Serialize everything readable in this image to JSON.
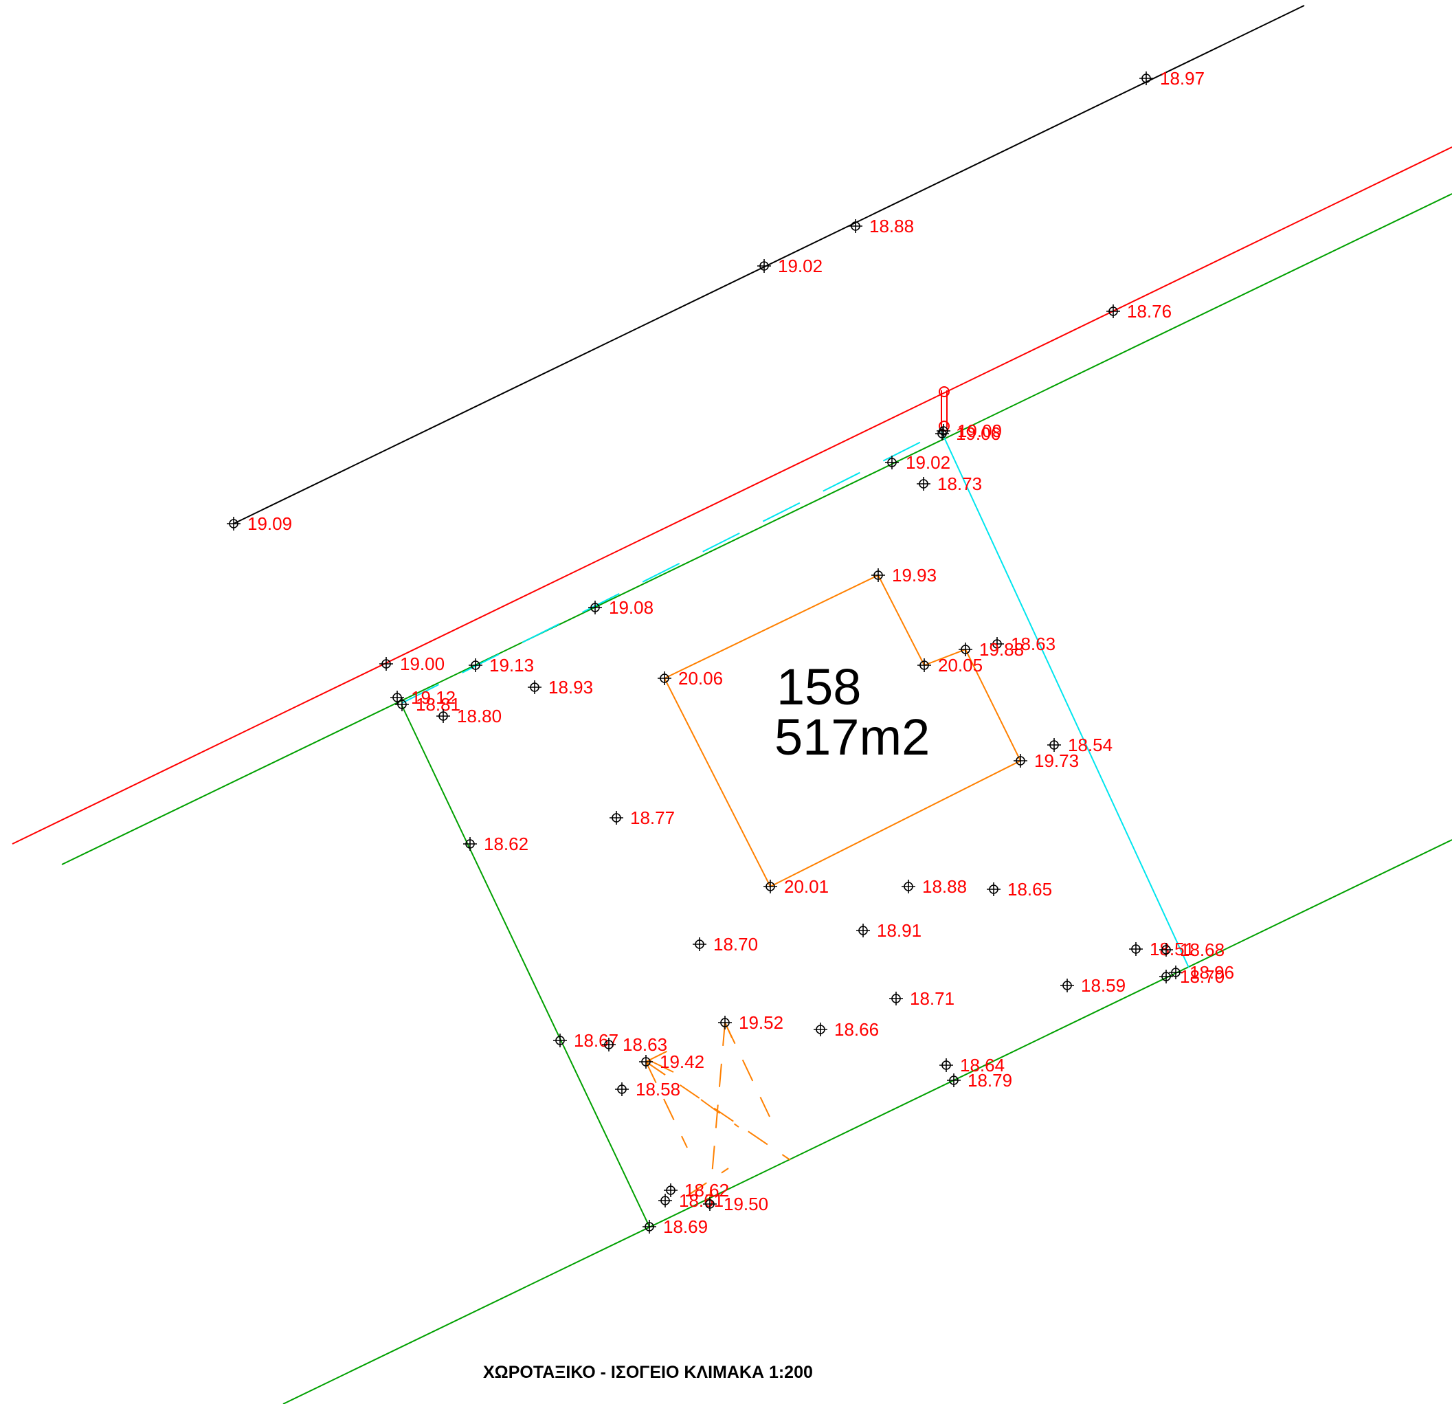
{
  "title": "ΧΩΡΟΤΑΞΙΚΟ - ΙΣΟΓΕΙΟ ΚΛΙΜΑΚΑ 1:200",
  "parcel": {
    "number": "158",
    "area": "517m2"
  },
  "colors": {
    "background": "#ffffff",
    "road_edge": "#000000",
    "building_line": "#ff0000",
    "plot_boundary": "#00a000",
    "neighbor_boundary": "#00e5ee",
    "building_footprint": "#ff8000",
    "elevation_text": "#ff0000",
    "marker": "#000000"
  },
  "elevations": [
    {
      "label": "18.97"
    },
    {
      "label": "18.88"
    },
    {
      "label": "19.02"
    },
    {
      "label": "18.76"
    },
    {
      "label": "19.09"
    },
    {
      "label": "19.06"
    },
    {
      "label": "19.02"
    },
    {
      "label": "18.73"
    },
    {
      "label": "19.09"
    },
    {
      "label": "19.93"
    },
    {
      "label": "19.08"
    },
    {
      "label": "18.63"
    },
    {
      "label": "19.88"
    },
    {
      "label": "19.00"
    },
    {
      "label": "19.13"
    },
    {
      "label": "20.06"
    },
    {
      "label": "20.05"
    },
    {
      "label": "18.93"
    },
    {
      "label": "19.12"
    },
    {
      "label": "18.81"
    },
    {
      "label": "18.80"
    },
    {
      "label": "18.54"
    },
    {
      "label": "19.73"
    },
    {
      "label": "18.77"
    },
    {
      "label": "18.62"
    },
    {
      "label": "20.01"
    },
    {
      "label": "18.88"
    },
    {
      "label": "18.65"
    },
    {
      "label": "18.91"
    },
    {
      "label": "18.70"
    },
    {
      "label": "18.51"
    },
    {
      "label": "18.68"
    },
    {
      "label": "18.96"
    },
    {
      "label": "18.70"
    },
    {
      "label": "18.59"
    },
    {
      "label": "18.71"
    },
    {
      "label": "19.52"
    },
    {
      "label": "18.66"
    },
    {
      "label": "18.67"
    },
    {
      "label": "18.63"
    },
    {
      "label": "19.42"
    },
    {
      "label": "18.64"
    },
    {
      "label": "18.79"
    },
    {
      "label": "18.58"
    },
    {
      "label": "18.62"
    },
    {
      "label": "18.61"
    },
    {
      "label": "19.50"
    },
    {
      "label": "18.69"
    }
  ]
}
